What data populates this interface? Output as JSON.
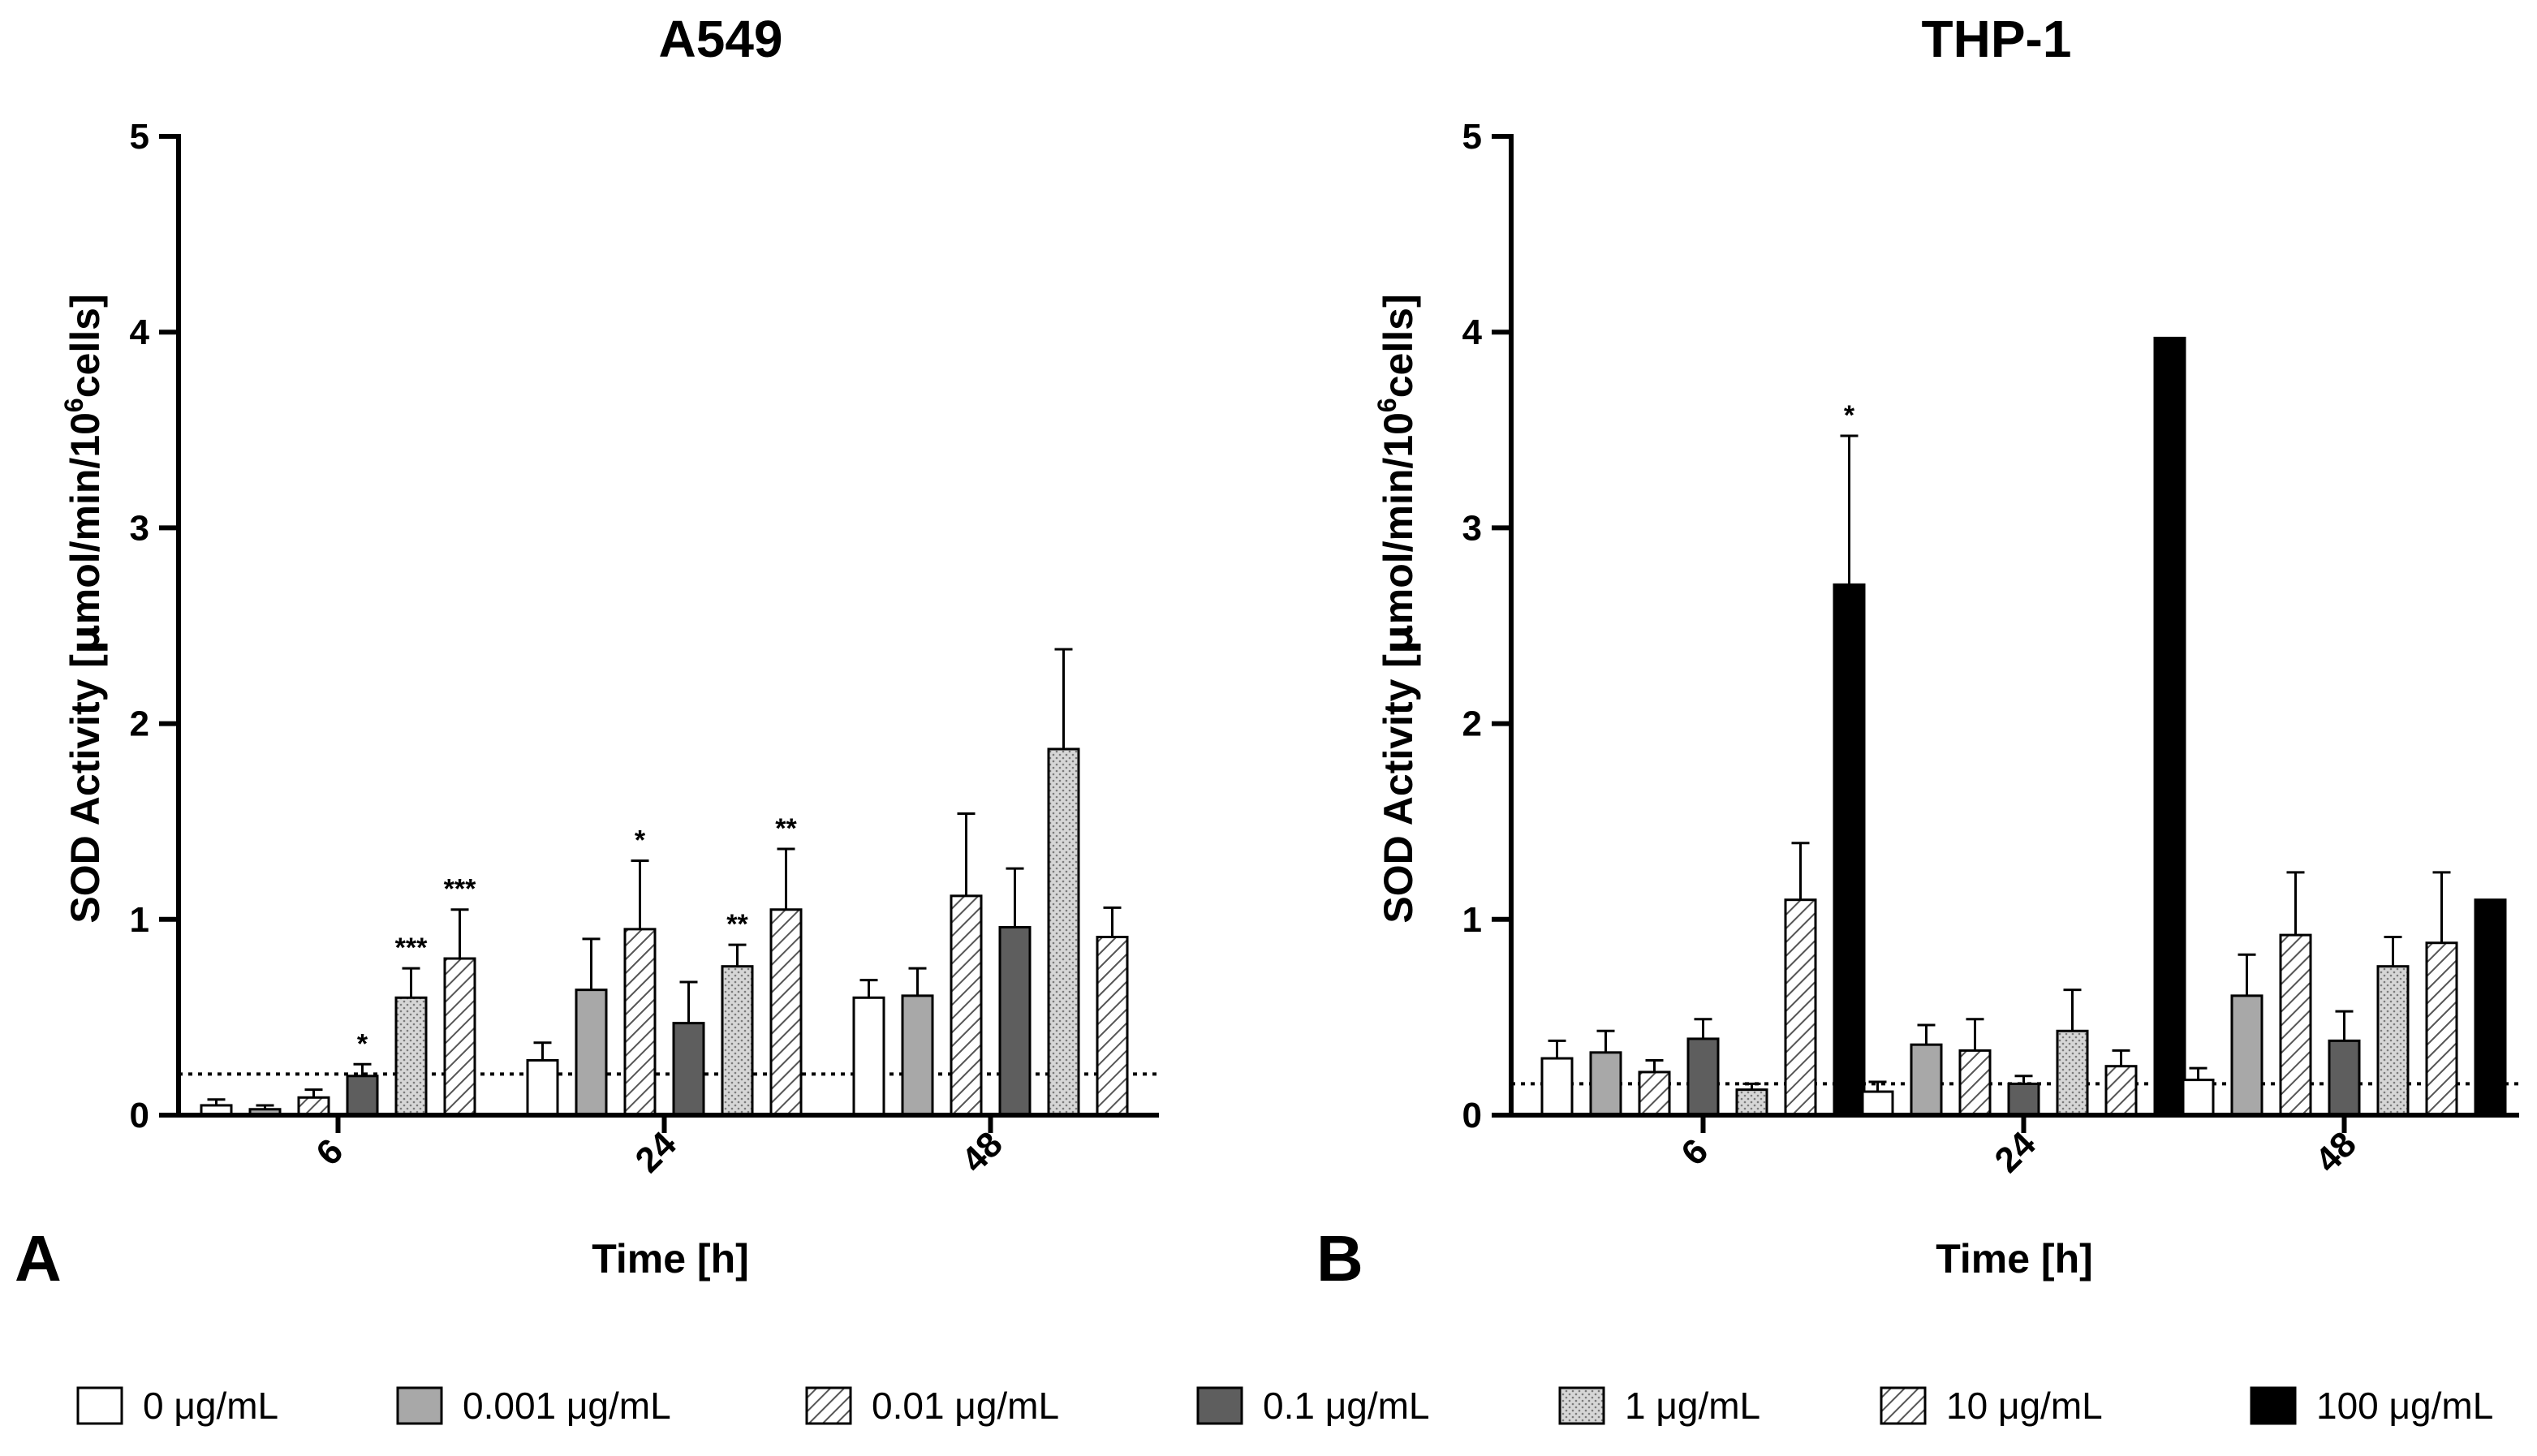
{
  "figure_panels": [
    "A",
    "B"
  ],
  "legend": {
    "entries": [
      {
        "label": "0 μg/mL",
        "style": "white"
      },
      {
        "label": "0.001 μg/mL",
        "style": "lightgray"
      },
      {
        "label": "0.01 μg/mL",
        "style": "hatch"
      },
      {
        "label": "0.1 μg/mL",
        "style": "darkgray"
      },
      {
        "label": "1 μg/mL",
        "style": "dots"
      },
      {
        "label": "10 μg/mL",
        "style": "hatch"
      },
      {
        "label": "100 μg/mL",
        "style": "black"
      }
    ]
  },
  "colors": {
    "lightgray": "#a8a8a8",
    "darkgray": "#5e5e5e",
    "black": "#000000",
    "dots": "#d6d6d6"
  },
  "chart_data": [
    {
      "type": "bar",
      "panel": "A",
      "title": "A549",
      "xlabel": "Time [h]",
      "ylabel_parts": [
        "SOD Activity [",
        "μ",
        "mol/min/10",
        "6",
        "cells]"
      ],
      "ylim": [
        0,
        5
      ],
      "yticks": [
        "0",
        "1",
        "2",
        "3",
        "4",
        "5"
      ],
      "categories": [
        "6",
        "24",
        "48"
      ],
      "baseline_dotted": 0.21,
      "series": [
        {
          "name": "0 μg/mL",
          "values": [
            0.05,
            0.28,
            0.6
          ],
          "errors": [
            0.03,
            0.09,
            0.09
          ],
          "sig": [
            "",
            "",
            ""
          ]
        },
        {
          "name": "0.001 μg/mL",
          "values": [
            0.03,
            0.64,
            0.61
          ],
          "errors": [
            0.02,
            0.26,
            0.14
          ],
          "sig": [
            "",
            "",
            ""
          ]
        },
        {
          "name": "0.01 μg/mL",
          "values": [
            0.09,
            0.95,
            1.12
          ],
          "errors": [
            0.04,
            0.35,
            0.42
          ],
          "sig": [
            "",
            "*",
            ""
          ]
        },
        {
          "name": "0.1 μg/mL",
          "values": [
            0.2,
            0.47,
            0.96
          ],
          "errors": [
            0.06,
            0.21,
            0.3
          ],
          "sig": [
            "*",
            "",
            ""
          ]
        },
        {
          "name": "1 μg/mL",
          "values": [
            0.6,
            0.76,
            1.87
          ],
          "errors": [
            0.15,
            0.11,
            0.51
          ],
          "sig": [
            "***",
            "**",
            ""
          ]
        },
        {
          "name": "10 μg/mL",
          "values": [
            0.8,
            1.05,
            0.91
          ],
          "errors": [
            0.25,
            0.31,
            0.15
          ],
          "sig": [
            "***",
            "**",
            ""
          ]
        }
      ]
    },
    {
      "type": "bar",
      "panel": "B",
      "title": "THP-1",
      "xlabel": "Time [h]",
      "ylabel_parts": [
        "SOD Activity [",
        "μ",
        "mol/min/10",
        "6",
        "cells]"
      ],
      "ylim": [
        0,
        5
      ],
      "yticks": [
        "0",
        "1",
        "2",
        "3",
        "4",
        "5"
      ],
      "categories": [
        "6",
        "24",
        "48"
      ],
      "baseline_dotted": 0.16,
      "series": [
        {
          "name": "0 μg/mL",
          "values": [
            0.29,
            0.12,
            0.18
          ],
          "errors": [
            0.09,
            0.05,
            0.06
          ],
          "sig": [
            "",
            "",
            ""
          ]
        },
        {
          "name": "0.001 μg/mL",
          "values": [
            0.32,
            0.36,
            0.61
          ],
          "errors": [
            0.11,
            0.1,
            0.21
          ],
          "sig": [
            "",
            "",
            ""
          ]
        },
        {
          "name": "0.01 μg/mL",
          "values": [
            0.22,
            0.33,
            0.92
          ],
          "errors": [
            0.06,
            0.16,
            0.32
          ],
          "sig": [
            "",
            "",
            ""
          ]
        },
        {
          "name": "0.1 μg/mL",
          "values": [
            0.39,
            0.16,
            0.38
          ],
          "errors": [
            0.1,
            0.04,
            0.15
          ],
          "sig": [
            "",
            "",
            ""
          ]
        },
        {
          "name": "1 μg/mL",
          "values": [
            0.13,
            0.43,
            0.76
          ],
          "errors": [
            0.03,
            0.21,
            0.15
          ],
          "sig": [
            "",
            "",
            ""
          ]
        },
        {
          "name": "10 μg/mL",
          "values": [
            1.1,
            0.25,
            0.88
          ],
          "errors": [
            0.29,
            0.08,
            0.36
          ],
          "sig": [
            "",
            "",
            ""
          ]
        },
        {
          "name": "100 μg/mL",
          "values": [
            2.71,
            3.97,
            1.1
          ],
          "errors": [
            0.76,
            0.0,
            0.0
          ],
          "sig": [
            "*",
            "",
            ""
          ]
        }
      ]
    }
  ]
}
